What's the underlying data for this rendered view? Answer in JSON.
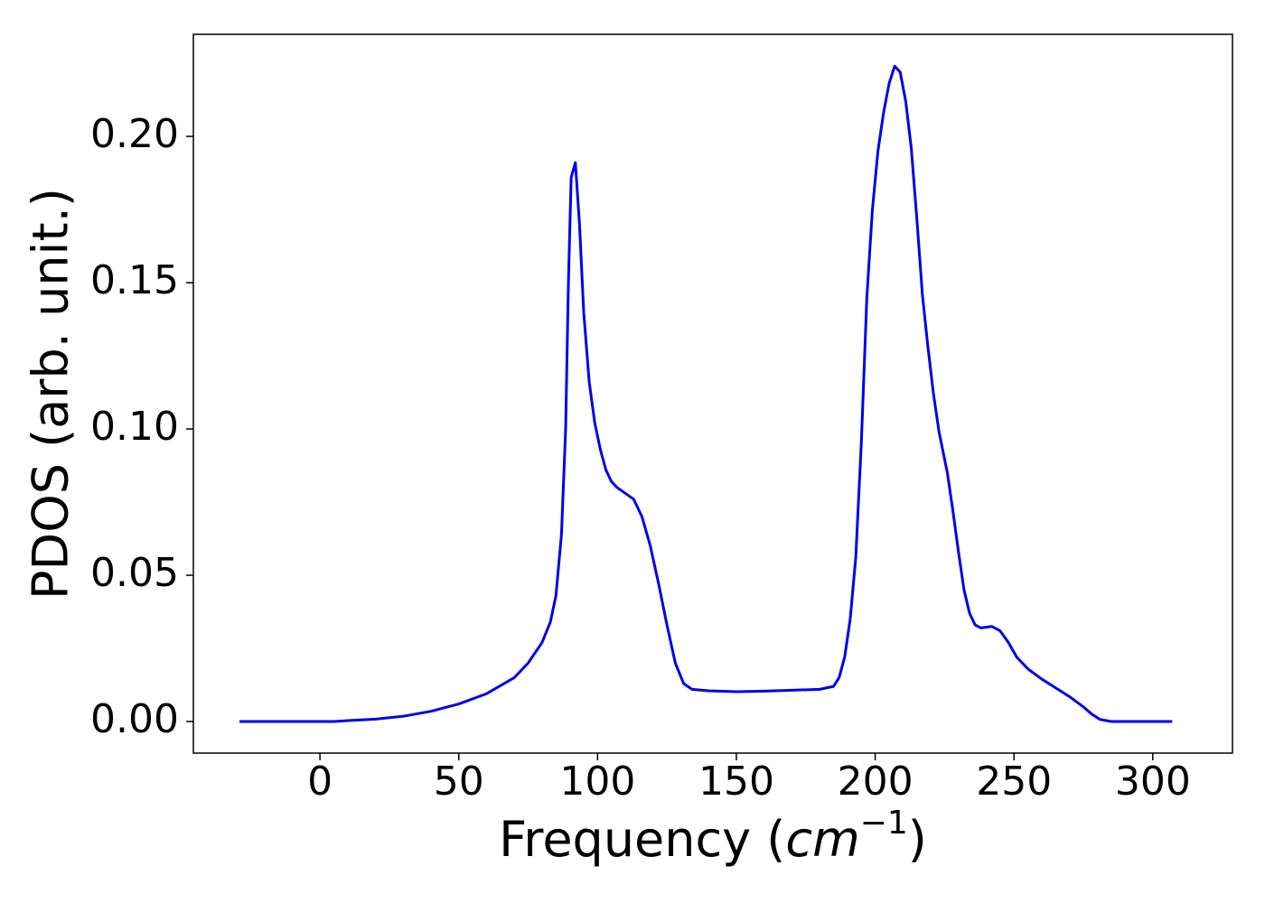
{
  "chart_data": {
    "type": "line",
    "xlabel": {
      "text": "Frequency (",
      "var": "cm",
      "sup": "−1",
      "end": ")"
    },
    "ylabel": "PDOS (arb. unit.)",
    "x": [
      -29,
      -20,
      -10,
      0,
      5,
      10,
      20,
      30,
      40,
      50,
      60,
      70,
      75,
      80,
      83,
      85,
      87,
      88.5,
      89.5,
      90.5,
      92,
      93.5,
      95,
      97,
      99,
      101,
      103,
      105,
      107,
      110,
      113,
      116,
      119,
      122,
      125,
      128,
      131,
      134,
      140,
      150,
      160,
      170,
      180,
      185,
      187,
      189,
      191,
      193,
      195,
      197,
      199,
      201,
      203,
      205,
      207,
      209,
      211,
      213,
      215,
      217,
      219,
      221,
      223,
      226,
      228,
      230,
      232,
      234,
      236,
      238,
      242,
      245,
      248,
      251,
      255,
      260,
      265,
      270,
      275,
      278,
      281,
      285,
      307
    ],
    "series": [
      {
        "name": "PDOS",
        "color": "#0000ee",
        "values": [
          0,
          0,
          0,
          0,
          0,
          0.0003,
          0.0008,
          0.0018,
          0.0035,
          0.006,
          0.0095,
          0.015,
          0.02,
          0.027,
          0.034,
          0.043,
          0.064,
          0.1,
          0.15,
          0.186,
          0.191,
          0.17,
          0.14,
          0.116,
          0.102,
          0.093,
          0.086,
          0.082,
          0.08,
          0.078,
          0.076,
          0.07,
          0.06,
          0.047,
          0.033,
          0.02,
          0.013,
          0.011,
          0.0105,
          0.0102,
          0.0104,
          0.0107,
          0.011,
          0.012,
          0.015,
          0.022,
          0.035,
          0.056,
          0.095,
          0.145,
          0.175,
          0.195,
          0.208,
          0.218,
          0.224,
          0.222,
          0.212,
          0.196,
          0.172,
          0.146,
          0.128,
          0.112,
          0.099,
          0.085,
          0.072,
          0.058,
          0.045,
          0.037,
          0.033,
          0.032,
          0.0325,
          0.031,
          0.027,
          0.022,
          0.018,
          0.0145,
          0.0115,
          0.0085,
          0.005,
          0.0025,
          0.0007,
          0,
          0
        ]
      }
    ],
    "xlim": [
      -45.6,
      328.7
    ],
    "ylim": [
      -0.0108,
      0.2349
    ],
    "xticks": [
      0,
      50,
      100,
      150,
      200,
      250,
      300
    ],
    "yticks": [
      {
        "value": 0,
        "label": "0.00"
      },
      {
        "value": 0.05,
        "label": "0.05"
      },
      {
        "value": 0.1,
        "label": "0.10"
      },
      {
        "value": 0.15,
        "label": "0.15"
      },
      {
        "value": 0.2,
        "label": "0.20"
      }
    ],
    "grid": false
  }
}
